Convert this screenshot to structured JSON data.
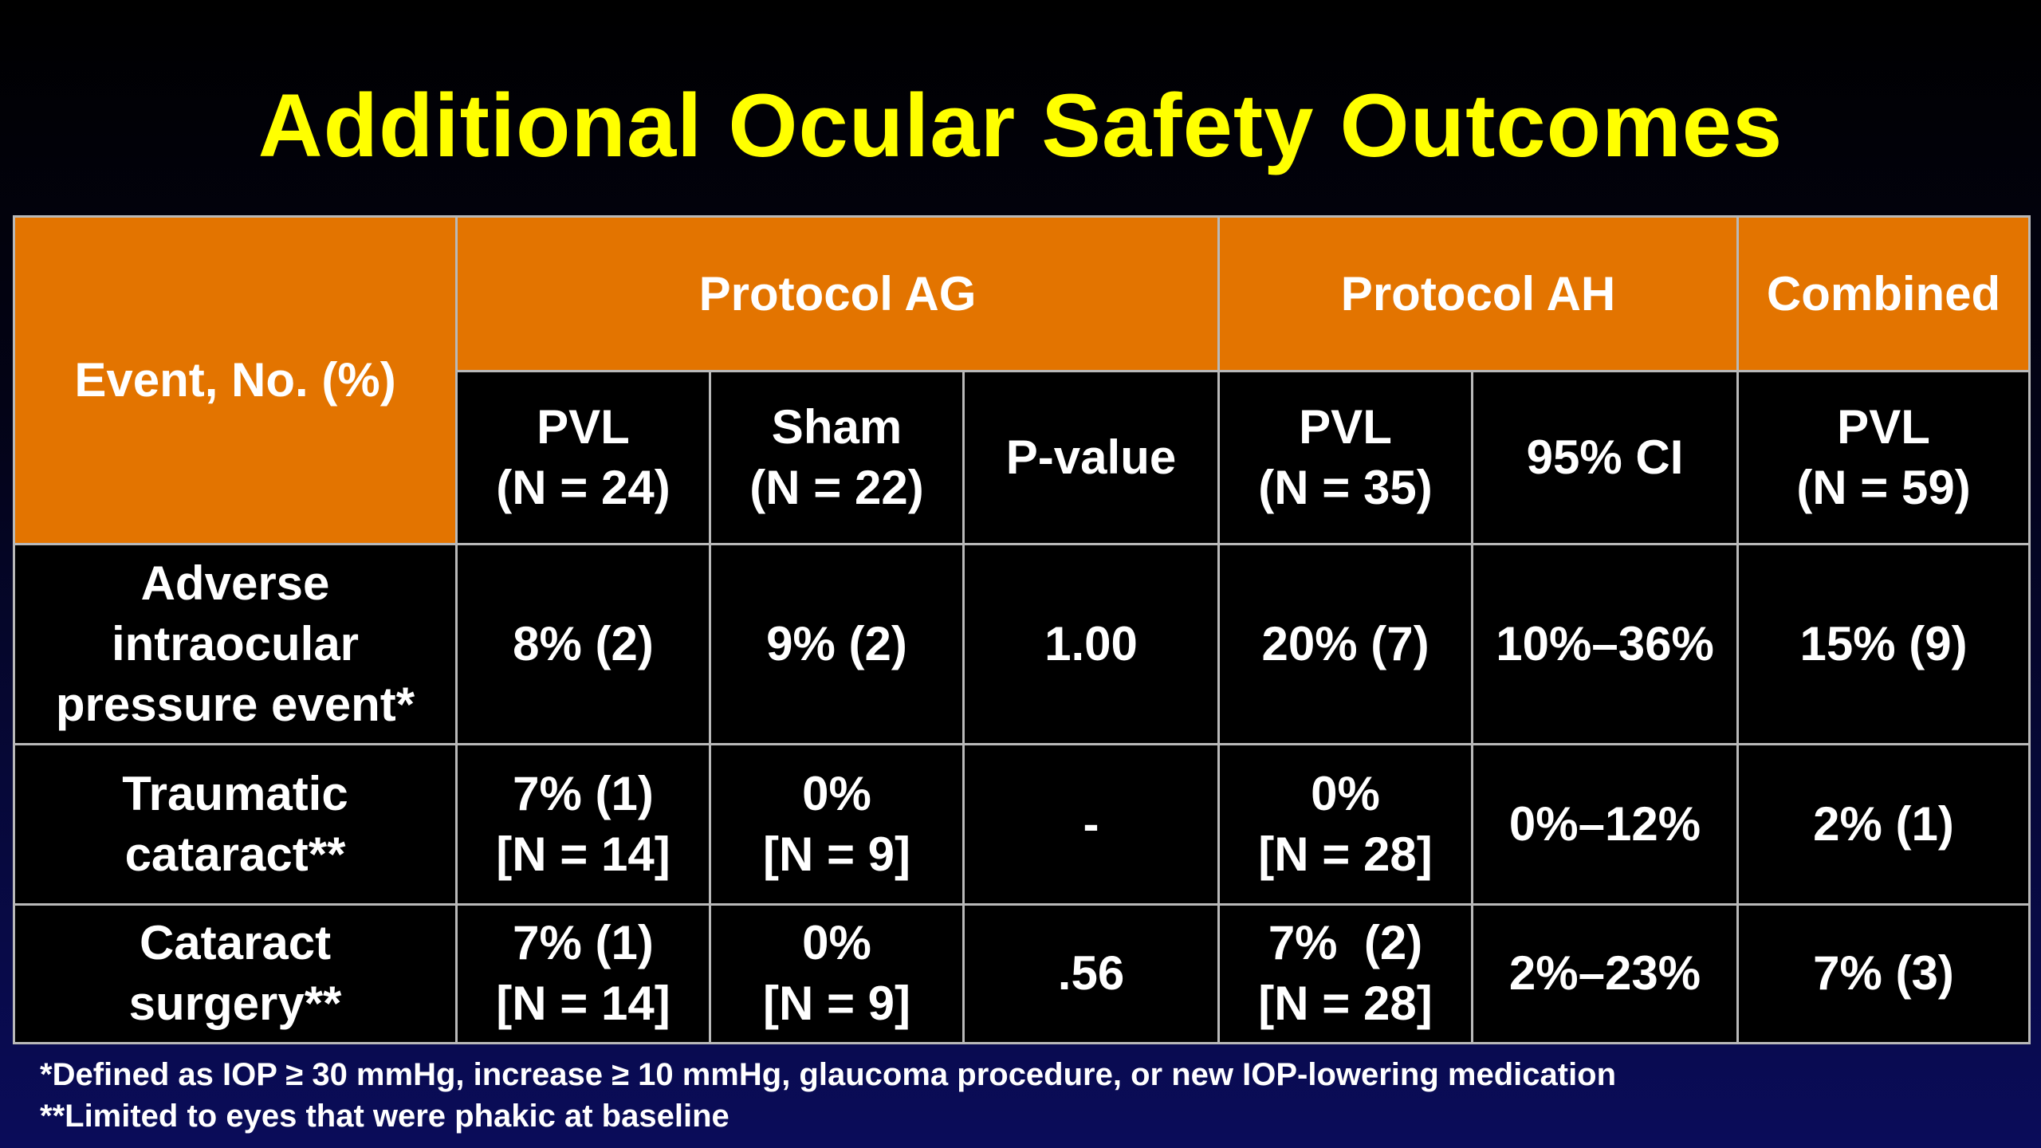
{
  "title": "Additional Ocular Safety Outcomes",
  "table": {
    "event_header": "Event, No. (%)",
    "groups": [
      {
        "label": "Protocol AG"
      },
      {
        "label": "Protocol AH"
      },
      {
        "label": "Combined"
      }
    ],
    "subheaders": [
      {
        "line1": "PVL",
        "line2": "(N = 24)"
      },
      {
        "line1": "Sham",
        "line2": "(N = 22)"
      },
      {
        "line1": "P-value",
        "line2": ""
      },
      {
        "line1": "PVL",
        "line2": "(N = 35)"
      },
      {
        "line1": "95% CI",
        "line2": ""
      },
      {
        "line1": "PVL",
        "line2": "(N = 59)"
      }
    ],
    "rows": [
      {
        "label_lines": [
          "Adverse",
          "intraocular",
          "pressure event*"
        ],
        "cells": [
          {
            "line1": "8% (2)",
            "line2": ""
          },
          {
            "line1": "9% (2)",
            "line2": ""
          },
          {
            "line1": "1.00",
            "line2": ""
          },
          {
            "line1": "20% (7)",
            "line2": ""
          },
          {
            "line1": "10%–36%",
            "line2": ""
          },
          {
            "line1": "15% (9)",
            "line2": ""
          }
        ]
      },
      {
        "label_lines": [
          "Traumatic",
          "cataract**"
        ],
        "cells": [
          {
            "line1": "7% (1)",
            "line2": "[N = 14]"
          },
          {
            "line1": "0%",
            "line2": "[N = 9]"
          },
          {
            "line1": "-",
            "line2": ""
          },
          {
            "line1": "0%",
            "line2": "[N = 28]"
          },
          {
            "line1": "0%–12%",
            "line2": ""
          },
          {
            "line1": "2% (1)",
            "line2": ""
          }
        ]
      },
      {
        "label_lines": [
          "Cataract",
          "surgery**"
        ],
        "cells": [
          {
            "line1": "7% (1)",
            "line2": "[N = 14]"
          },
          {
            "line1": "0%",
            "line2": "[N = 9]"
          },
          {
            "line1": ".56",
            "line2": ""
          },
          {
            "line1": "7%  (2)",
            "line2": "[N = 28]"
          },
          {
            "line1": "2%–23%",
            "line2": ""
          },
          {
            "line1": "7% (3)",
            "line2": ""
          }
        ]
      }
    ]
  },
  "footnotes": [
    "*Defined as IOP ≥ 30 mmHg, increase ≥ 10 mmHg, glaucoma procedure, or new IOP-lowering medication",
    "**Limited to eyes that were phakic at baseline"
  ],
  "colors": {
    "title": "#ffff00",
    "header_fill": "#e37400",
    "cell_fill": "#000000",
    "grid": "#b9b9b9",
    "text": "#ffffff"
  }
}
